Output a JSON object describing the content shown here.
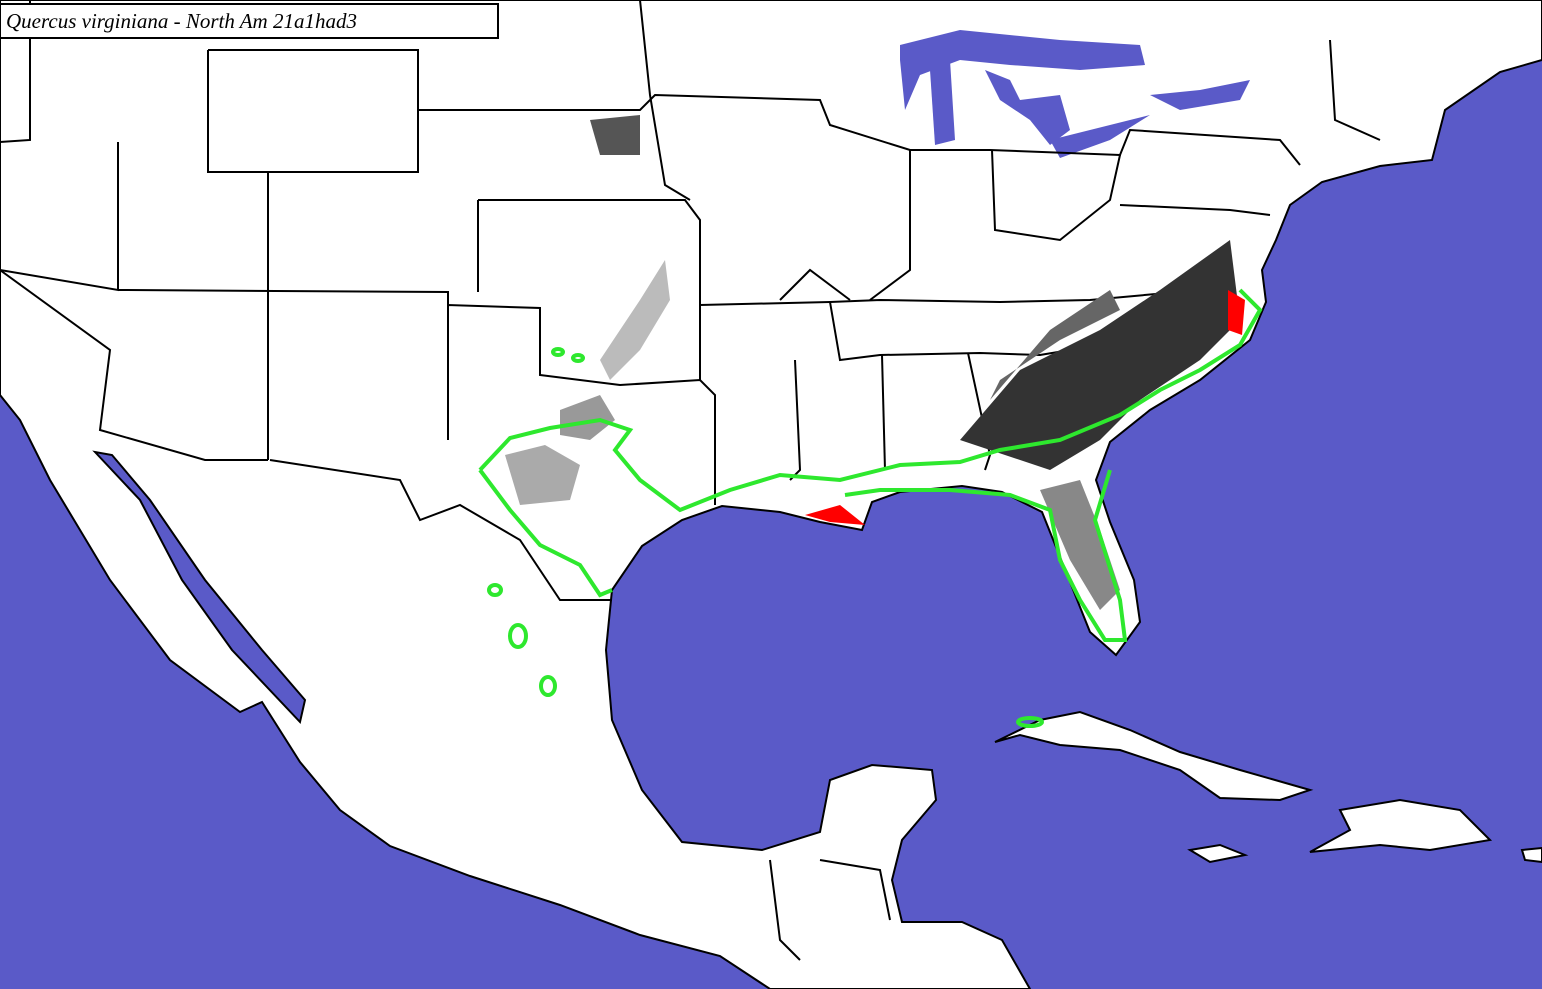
{
  "header": {
    "title": "Quercus virginiana - North Am 21a1had3"
  }
}
